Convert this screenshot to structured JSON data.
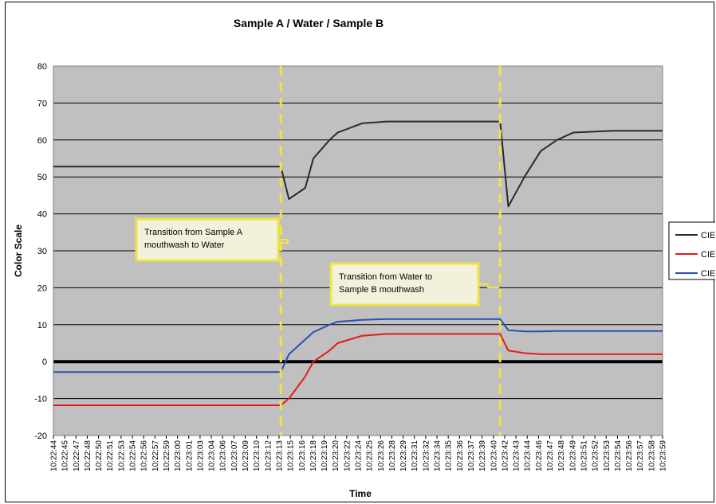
{
  "chart_data": {
    "type": "line",
    "title": "Sample A / Water / Sample B",
    "xlabel": "Time",
    "ylabel": "Color Scale",
    "ylim": [
      -20,
      80
    ],
    "yticks": [
      -20,
      -10,
      0,
      10,
      20,
      30,
      40,
      50,
      60,
      70,
      80
    ],
    "grid": true,
    "legend_position": "right",
    "x_tick_labels": [
      "10:22:44",
      "10:22:45",
      "10:22:47",
      "10:22:48",
      "10:22:50",
      "10:22:51",
      "10:22:53",
      "10:22:54",
      "10:22:56",
      "10:22:57",
      "10:22:59",
      "10:23:00",
      "10:23:01",
      "10:23:03",
      "10:23:04",
      "10:23:06",
      "10:23:07",
      "10:23:09",
      "10:23:10",
      "10:23:12",
      "10:23:13",
      "10:23:15",
      "10:23:16",
      "10:23:18",
      "10:23:19",
      "10:23:20",
      "10:23:22",
      "10:23:24",
      "10:23:25",
      "10:23:26",
      "10:23:28",
      "10:23:29",
      "10:23:31",
      "10:23:32",
      "10:23:34",
      "10:23:35",
      "10:23:36",
      "10:23:37",
      "10:23:39",
      "10:23:40",
      "10:23:42",
      "10:23:43",
      "10:23:44",
      "10:23:46",
      "10:23:47",
      "10:23:48",
      "10:23:49",
      "10:23:51",
      "10:23:52",
      "10:23:53",
      "10:23:54",
      "10:23:56",
      "10:23:57",
      "10:23:58",
      "10:23:59"
    ],
    "series": [
      {
        "name": "CIE",
        "color": "#2b2b2b",
        "x": [
          "10:22:44",
          "10:23:10",
          "10:23:12",
          "10:23:13",
          "10:23:15",
          "10:23:16",
          "10:23:18",
          "10:23:19",
          "10:23:22",
          "10:23:25",
          "10:23:39",
          "10:23:40",
          "10:23:42",
          "10:23:44",
          "10:23:46",
          "10:23:48",
          "10:23:53",
          "10:23:57",
          "10:23:59"
        ],
        "y": [
          52.8,
          52.8,
          52.8,
          44,
          47,
          55,
          60,
          62,
          64.5,
          65,
          65,
          42,
          50,
          57,
          60,
          62,
          62.5,
          62.5,
          62.5
        ]
      },
      {
        "name": "CIE",
        "color": "#e31a1c",
        "x": [
          "10:22:44",
          "10:23:10",
          "10:23:12",
          "10:23:13",
          "10:23:15",
          "10:23:16",
          "10:23:18",
          "10:23:19",
          "10:23:22",
          "10:23:25",
          "10:23:39",
          "10:23:40",
          "10:23:42",
          "10:23:44",
          "10:23:46",
          "10:23:48",
          "10:23:53",
          "10:23:57",
          "10:23:59"
        ],
        "y": [
          -11.8,
          -11.8,
          -11.8,
          -10,
          -4,
          0,
          3,
          5,
          7,
          7.5,
          7.5,
          3,
          2.3,
          2,
          2,
          2,
          2,
          2,
          2
        ]
      },
      {
        "name": "CIE",
        "color": "#2a4fb4",
        "x": [
          "10:22:44",
          "10:23:10",
          "10:23:12",
          "10:23:13",
          "10:23:15",
          "10:23:16",
          "10:23:18",
          "10:23:19",
          "10:23:22",
          "10:23:25",
          "10:23:39",
          "10:23:40",
          "10:23:42",
          "10:23:44",
          "10:23:46",
          "10:23:48",
          "10:23:53",
          "10:23:57",
          "10:23:59"
        ],
        "y": [
          -2.8,
          -2.8,
          -2.8,
          2,
          6,
          8,
          10,
          10.8,
          11.3,
          11.5,
          11.5,
          8.5,
          8.2,
          8.2,
          8.3,
          8.3,
          8.3,
          8.3,
          8.3
        ]
      }
    ],
    "reference_lines": [
      {
        "x": "10:23:12",
        "color": "#f0e442",
        "style": "dashed"
      },
      {
        "x": "10:23:39",
        "color": "#f0e442",
        "style": "dashed"
      }
    ],
    "annotations": [
      {
        "text_lines": [
          "Transition from Sample A",
          "mouthwash to Water"
        ],
        "points_to": "10:23:12"
      },
      {
        "text_lines": [
          "Transition from Water to",
          "Sample B mouthwash"
        ],
        "points_to": "10:23:39"
      }
    ]
  }
}
